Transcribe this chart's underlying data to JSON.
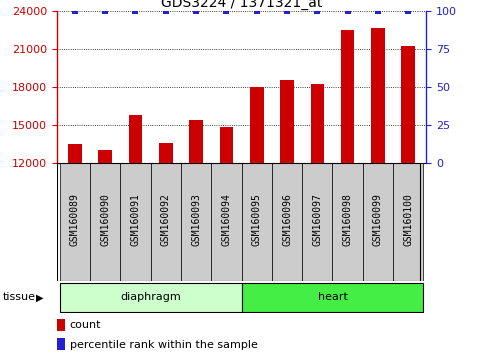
{
  "title": "GDS3224 / 1371321_at",
  "samples": [
    "GSM160089",
    "GSM160090",
    "GSM160091",
    "GSM160092",
    "GSM160093",
    "GSM160094",
    "GSM160095",
    "GSM160096",
    "GSM160097",
    "GSM160098",
    "GSM160099",
    "GSM160100"
  ],
  "counts": [
    13500,
    13000,
    15800,
    13600,
    15400,
    14800,
    17950,
    18500,
    18200,
    22500,
    22600,
    21200
  ],
  "percentiles": [
    100,
    100,
    100,
    100,
    100,
    100,
    100,
    100,
    100,
    100,
    100,
    100
  ],
  "bar_color": "#CC0000",
  "percentile_color": "#2222CC",
  "ylim_left": [
    12000,
    24000
  ],
  "yticks_left": [
    12000,
    15000,
    18000,
    21000,
    24000
  ],
  "ylim_right": [
    0,
    100
  ],
  "yticks_right": [
    0,
    25,
    50,
    75,
    100
  ],
  "group_colors": [
    "#CCFFCC",
    "#44EE44"
  ],
  "groups": [
    {
      "label": "diaphragm",
      "start": 0,
      "end": 6
    },
    {
      "label": "heart",
      "start": 6,
      "end": 12
    }
  ],
  "sample_box_color": "#CCCCCC",
  "tissue_label": "tissue",
  "legend_count_label": "count",
  "legend_percentile_label": "percentile rank within the sample",
  "bar_width": 0.45,
  "title_fontsize": 10,
  "tick_fontsize": 8,
  "label_fontsize": 7,
  "group_fontsize": 8,
  "legend_fontsize": 8
}
